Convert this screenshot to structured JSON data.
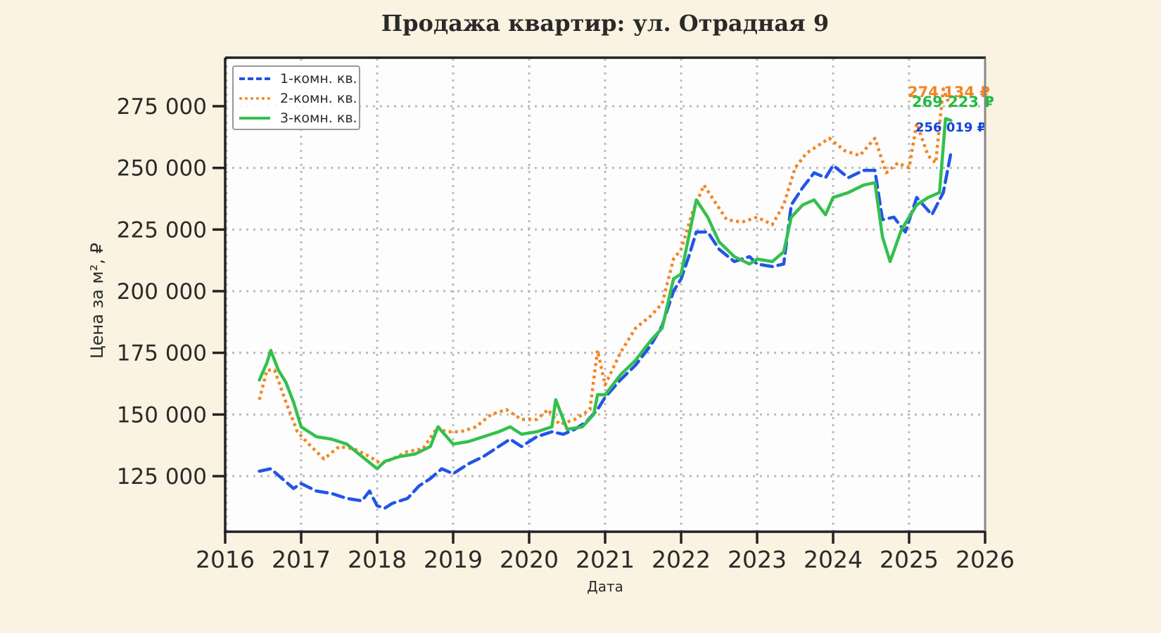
{
  "title": "Продажа квартир: ул. Отрадная 9",
  "chart_data": {
    "type": "line",
    "title": "Продажа квартир: ул. Отрадная 9",
    "xlabel": "Дата",
    "ylabel": "Цена за м², ₽",
    "xlim": [
      2016,
      2026
    ],
    "ylim": [
      102760,
      294400
    ],
    "x_ticks": [
      "2016",
      "2017",
      "2018",
      "2019",
      "2020",
      "2021",
      "2022",
      "2023",
      "2024",
      "2025",
      "2026"
    ],
    "y_ticks": [
      125000,
      150000,
      175000,
      200000,
      225000,
      250000,
      275000
    ],
    "y_tick_labels": [
      "125 000",
      "150 000",
      "175 000",
      "200 000",
      "225 000",
      "250 000",
      "275 000"
    ],
    "grid": true,
    "legend_position": "upper left",
    "series": [
      {
        "name": "1-комн. кв.",
        "color": "#2255e6",
        "style": "dashed",
        "x": [
          2016.45,
          2016.6,
          2016.75,
          2016.9,
          2017.0,
          2017.2,
          2017.4,
          2017.6,
          2017.8,
          2017.9,
          2018.0,
          2018.1,
          2018.2,
          2018.4,
          2018.55,
          2018.7,
          2018.85,
          2019.0,
          2019.2,
          2019.4,
          2019.6,
          2019.75,
          2019.9,
          2020.1,
          2020.3,
          2020.45,
          2020.6,
          2020.75,
          2020.9,
          2021.0,
          2021.2,
          2021.4,
          2021.6,
          2021.75,
          2021.9,
          2022.0,
          2022.1,
          2022.2,
          2022.35,
          2022.5,
          2022.7,
          2022.9,
          2023.0,
          2023.2,
          2023.35,
          2023.45,
          2023.6,
          2023.75,
          2023.9,
          2024.0,
          2024.2,
          2024.4,
          2024.55,
          2024.65,
          2024.8,
          2024.95,
          2025.1,
          2025.3,
          2025.45,
          2025.55
        ],
        "values": [
          127000,
          128000,
          124000,
          120000,
          122000,
          119000,
          118000,
          116000,
          115000,
          119000,
          113000,
          112000,
          114000,
          116000,
          121000,
          124000,
          128000,
          126000,
          130000,
          133000,
          137000,
          140000,
          137000,
          141000,
          143000,
          142000,
          144000,
          147000,
          152000,
          157000,
          164000,
          170000,
          178000,
          186000,
          200000,
          205000,
          214000,
          224000,
          224000,
          217000,
          212000,
          214000,
          211000,
          210000,
          211000,
          235000,
          242000,
          248000,
          246000,
          251000,
          246000,
          249000,
          249000,
          229000,
          230000,
          224000,
          238000,
          231000,
          240000,
          256019
        ]
      },
      {
        "name": "2-комн. кв.",
        "color": "#f5841f",
        "style": "dotted",
        "x": [
          2016.45,
          2016.55,
          2016.65,
          2016.8,
          2016.95,
          2017.1,
          2017.3,
          2017.5,
          2017.7,
          2017.9,
          2018.05,
          2018.2,
          2018.4,
          2018.6,
          2018.8,
          2018.9,
          2019.1,
          2019.3,
          2019.5,
          2019.7,
          2019.9,
          2020.1,
          2020.25,
          2020.4,
          2020.6,
          2020.8,
          2020.9,
          2021.0,
          2021.2,
          2021.4,
          2021.6,
          2021.75,
          2021.9,
          2022.0,
          2022.15,
          2022.3,
          2022.45,
          2022.6,
          2022.8,
          2023.0,
          2023.2,
          2023.35,
          2023.5,
          2023.65,
          2023.8,
          2023.95,
          2024.15,
          2024.35,
          2024.55,
          2024.7,
          2024.85,
          2025.0,
          2025.1,
          2025.25,
          2025.35,
          2025.45,
          2025.55
        ],
        "values": [
          156000,
          168000,
          168000,
          155000,
          143000,
          138000,
          132000,
          137000,
          136000,
          133000,
          130000,
          132000,
          135000,
          136000,
          145000,
          143000,
          143000,
          145000,
          150000,
          152000,
          148000,
          148000,
          152000,
          146000,
          148000,
          152000,
          176000,
          162000,
          175000,
          185000,
          190000,
          195000,
          213000,
          217000,
          232000,
          243000,
          236000,
          229000,
          228000,
          230000,
          227000,
          235000,
          250000,
          256000,
          259000,
          262000,
          257000,
          255000,
          262000,
          248000,
          252000,
          250000,
          268000,
          255000,
          252000,
          282000,
          274134
        ]
      },
      {
        "name": "3-комн. кв.",
        "color": "#34c04d",
        "style": "solid",
        "x": [
          2016.45,
          2016.55,
          2016.6,
          2016.7,
          2016.8,
          2016.9,
          2017.0,
          2017.2,
          2017.4,
          2017.6,
          2017.8,
          2018.0,
          2018.1,
          2018.3,
          2018.5,
          2018.7,
          2018.8,
          2019.0,
          2019.2,
          2019.4,
          2019.6,
          2019.75,
          2019.9,
          2020.1,
          2020.3,
          2020.35,
          2020.5,
          2020.7,
          2020.85,
          2020.9,
          2021.0,
          2021.2,
          2021.4,
          2021.6,
          2021.75,
          2021.9,
          2022.0,
          2022.1,
          2022.2,
          2022.35,
          2022.5,
          2022.7,
          2022.9,
          2023.0,
          2023.2,
          2023.35,
          2023.45,
          2023.6,
          2023.75,
          2023.9,
          2024.0,
          2024.2,
          2024.4,
          2024.55,
          2024.65,
          2024.75,
          2024.9,
          2025.1,
          2025.25,
          2025.4,
          2025.48,
          2025.55
        ],
        "values": [
          164000,
          171000,
          176000,
          168000,
          163000,
          155000,
          145000,
          141000,
          140000,
          138000,
          133000,
          128000,
          131000,
          133000,
          134000,
          137000,
          145000,
          138000,
          139000,
          141000,
          143000,
          145000,
          142000,
          143000,
          145000,
          156000,
          144000,
          145000,
          150000,
          158000,
          158000,
          166000,
          172000,
          180000,
          185000,
          205000,
          207000,
          222000,
          237000,
          230000,
          220000,
          214000,
          211000,
          213000,
          212000,
          216000,
          230000,
          235000,
          237000,
          231000,
          238000,
          240000,
          243000,
          244000,
          222000,
          212000,
          225000,
          235000,
          238000,
          240000,
          270000,
          269223
        ]
      }
    ],
    "annotations": [
      {
        "text": "274 134 ₽",
        "color": "#f5841f",
        "series": "2-комн. кв."
      },
      {
        "text": "269 223 ₽",
        "color": "#22bb44",
        "series": "3-комн. кв."
      },
      {
        "text": "256 019 ₽",
        "color": "#1144dd",
        "series": "1-комн. кв."
      }
    ]
  },
  "legend": {
    "items": [
      {
        "label": "1-комн. кв.",
        "color": "#2255e6"
      },
      {
        "label": "2-комн. кв.",
        "color": "#f5841f"
      },
      {
        "label": "3-комн. кв.",
        "color": "#34c04d"
      }
    ]
  }
}
